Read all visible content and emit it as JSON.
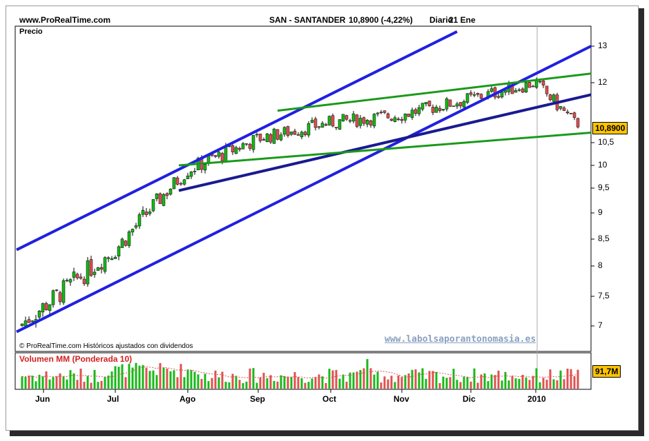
{
  "header": {
    "site": "www.ProRealTime.com",
    "instrument": "SAN - SANTANDER",
    "price_change": "10,8900 (-4,22%)",
    "period": "Diario",
    "date": "21 Ene"
  },
  "price_panel_label": "Precio",
  "footer_note": "© ProRealTime.com Históricos ajustados con dividendos",
  "watermark": "www.labolsaporantonomasia.es",
  "volume_label": "Volumen MM (Ponderada 10)",
  "last_price_badge": "10,8900",
  "volume_badge": "91,7M",
  "colors": {
    "up": "#18b818",
    "down": "#e05050",
    "trend_blue": "#2020e0",
    "trend_green": "#1a9a1a",
    "badge": "#ffc400"
  },
  "chart_data": {
    "type": "candlestick",
    "title": "SAN - SANTANDER",
    "ylabel": "Precio",
    "y_ticks": [
      "7",
      "7,5",
      "8",
      "8,5",
      "9",
      "9,5",
      "10",
      "10,5",
      "12",
      "13"
    ],
    "x_ticks": [
      "Jun",
      "Jul",
      "Ago",
      "Sep",
      "Oct",
      "Nov",
      "Dic",
      "2010"
    ],
    "last_close": "10,8900",
    "close_series": {
      "dates": [
        "Jun",
        "Jul",
        "Ago",
        "Sep",
        "Oct",
        "Nov",
        "Dic",
        "2010",
        "21 Ene"
      ],
      "values": [
        7.2,
        8.3,
        9.9,
        10.6,
        11.0,
        11.2,
        11.6,
        12.0,
        10.89
      ]
    },
    "trendlines": [
      {
        "color": "blue",
        "from": [
          "Jun",
          8.3
        ],
        "to": [
          "Oct",
          13.4
        ]
      },
      {
        "color": "blue",
        "from": [
          "Jun",
          6.9
        ],
        "to": [
          "21 Ene",
          13.0
        ]
      },
      {
        "color": "navy",
        "from": [
          "Ago",
          9.45
        ],
        "to": [
          "21 Ene",
          11.7
        ]
      },
      {
        "color": "green",
        "from": [
          "Ago",
          10.0
        ],
        "to": [
          "21 Ene",
          10.75
        ]
      },
      {
        "color": "green",
        "from": [
          "Sep",
          11.3
        ],
        "to": [
          "21 Ene",
          12.25
        ]
      }
    ],
    "volume": {
      "label": "Volumen MM (Ponderada 10)",
      "last": "91,7M"
    },
    "grid": false
  }
}
